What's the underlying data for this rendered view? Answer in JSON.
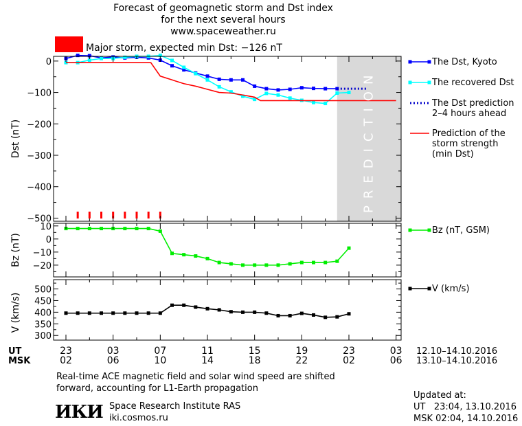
{
  "header": {
    "title_line1": "Forecast of geomagnetic storm and Dst index",
    "title_line2": "for the next several hours",
    "website": "www.spaceweather.ru",
    "storm_label": "Major storm, expected min Dst: −126 nT",
    "storm_color": "#ff0000"
  },
  "time_axis": {
    "ut_label": "UT",
    "msk_label": "MSK",
    "ut_ticks": [
      "23",
      "03",
      "07",
      "11",
      "15",
      "19",
      "23",
      "03"
    ],
    "msk_ticks": [
      "02",
      "06",
      "10",
      "14",
      "18",
      "22",
      "02",
      "06"
    ],
    "ut_range": "12.10–14.10.2016",
    "msk_range": "13.10–14.10.2016"
  },
  "chart_data": [
    {
      "type": "line",
      "panel": "dst",
      "ylabel": "Dst (nT)",
      "ylim": [
        -510,
        15
      ],
      "yticks": [
        0,
        -100,
        -200,
        -300,
        -400,
        -500
      ],
      "xlim": [
        0,
        28
      ],
      "prediction_band": {
        "start": 23,
        "end": 28,
        "label": "PREDICTION",
        "color": "#d9d9d9"
      },
      "series": [
        {
          "name": "The Dst, Kyoto",
          "color": "#0000ff",
          "style": "solid-square",
          "x": [
            0,
            1,
            2,
            3,
            4,
            5,
            6,
            7,
            8,
            9,
            10,
            11,
            12,
            13,
            14,
            15,
            16,
            17,
            18,
            19,
            20,
            21,
            22,
            23
          ],
          "y": [
            8,
            18,
            17,
            10,
            13,
            10,
            12,
            10,
            3,
            -15,
            -28,
            -38,
            -48,
            -58,
            -60,
            -60,
            -80,
            -88,
            -92,
            -90,
            -85,
            -87,
            -88,
            -88
          ]
        },
        {
          "name": "The recovered Dst",
          "color": "#00ffff",
          "style": "solid-square",
          "x": [
            0,
            1,
            2,
            3,
            4,
            5,
            6,
            7,
            8,
            9,
            10,
            11,
            12,
            13,
            14,
            15,
            16,
            17,
            18,
            19,
            20,
            21,
            22,
            23,
            24
          ],
          "y": [
            -5,
            -5,
            3,
            8,
            8,
            12,
            15,
            15,
            18,
            2,
            -20,
            -40,
            -60,
            -82,
            -98,
            -112,
            -122,
            -103,
            -108,
            -118,
            -125,
            -132,
            -135,
            -102,
            -100
          ]
        },
        {
          "name": "The Dst prediction 2–4 hours ahead",
          "color": "#0000cc",
          "style": "dotted",
          "x": [
            23,
            25.5
          ],
          "y": [
            -88,
            -88
          ]
        },
        {
          "name": "Prediction of the storm strength (min Dst)",
          "color": "#ff0000",
          "style": "solid",
          "x": [
            0,
            7.2,
            8,
            9,
            10,
            11,
            12,
            13,
            14,
            15,
            16,
            16.5,
            17,
            28
          ],
          "y": [
            -5,
            -5,
            -48,
            -60,
            -72,
            -80,
            -90,
            -100,
            -102,
            -108,
            -115,
            -126,
            -126,
            -126
          ]
        }
      ],
      "storm_markers_x": [
        1,
        2,
        3,
        4,
        5,
        6,
        7,
        8
      ]
    },
    {
      "type": "line",
      "panel": "bz",
      "ylabel": "Bz (nT)",
      "ylim": [
        -29,
        12
      ],
      "yticks": [
        10,
        0,
        -10,
        -20
      ],
      "xlim": [
        0,
        28
      ],
      "series": [
        {
          "name": "Bz (nT, GSM)",
          "color": "#00ee00",
          "x": [
            0,
            1,
            2,
            3,
            4,
            5,
            6,
            7,
            8,
            9,
            10,
            11,
            12,
            13,
            14,
            15,
            16,
            17,
            18,
            19,
            20,
            21,
            22,
            23,
            24
          ],
          "y": [
            8,
            8,
            8,
            8,
            8,
            8,
            8,
            8,
            6,
            -11,
            -12,
            -13,
            -15,
            -18,
            -19,
            -20,
            -20,
            -20,
            -20,
            -19,
            -18,
            -18,
            -18,
            -17,
            -7
          ]
        }
      ]
    },
    {
      "type": "line",
      "panel": "v",
      "ylabel": "V (km/s)",
      "ylim": [
        280,
        540
      ],
      "yticks": [
        500,
        450,
        400,
        350,
        300
      ],
      "xlim": [
        0,
        28
      ],
      "series": [
        {
          "name": "V (km/s)",
          "color": "#000000",
          "x": [
            0,
            1,
            2,
            3,
            4,
            5,
            6,
            7,
            8,
            9,
            10,
            11,
            12,
            13,
            14,
            15,
            16,
            17,
            18,
            19,
            20,
            21,
            22,
            23,
            24
          ],
          "y": [
            396,
            396,
            396,
            396,
            396,
            396,
            396,
            396,
            396,
            430,
            430,
            422,
            415,
            410,
            402,
            400,
            400,
            396,
            385,
            385,
            395,
            388,
            378,
            380,
            393
          ]
        }
      ]
    }
  ],
  "footer": {
    "note_line1": "Real-time ACE magnetic field and solar wind speed are shifted",
    "note_line2": "forward, accounting for L1-Earth propagation",
    "logo_text": "ИКИ",
    "institute": "Space Research Institute RAS",
    "institute_url": "iki.cosmos.ru",
    "updated_label": "Updated at:",
    "updated_ut": "UT   23:04, 13.10.2016",
    "updated_msk": "MSK 02:04, 14.10.2016"
  }
}
